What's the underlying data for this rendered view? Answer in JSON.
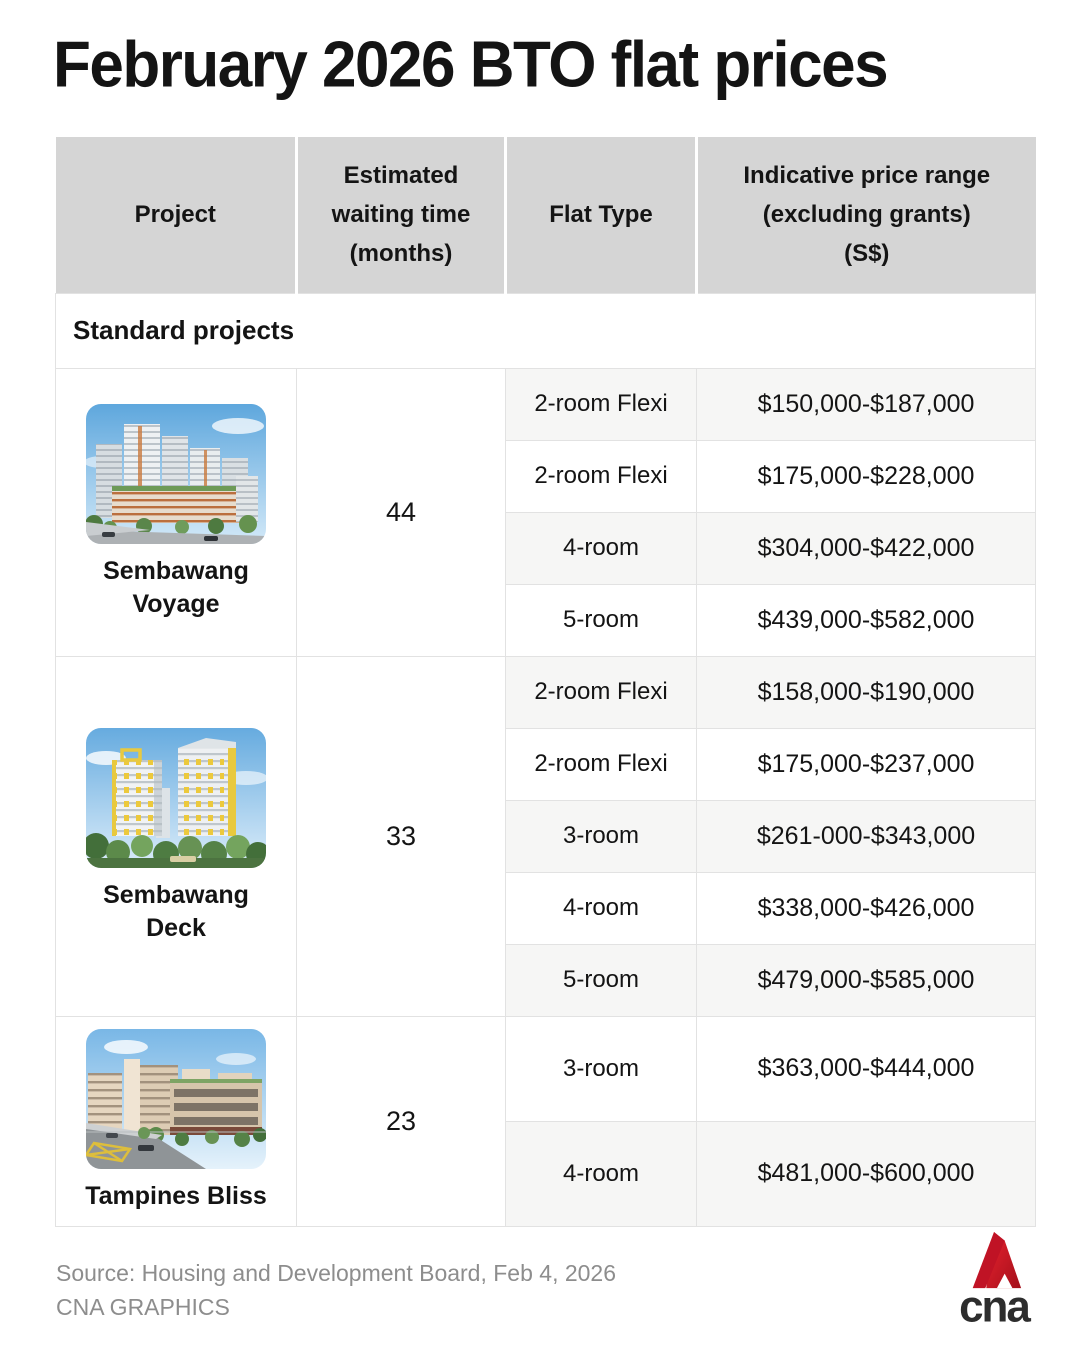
{
  "page": {
    "title": "February 2026 BTO flat prices"
  },
  "colors": {
    "header_bg": "#d5d5d5",
    "row_shade": "#f6f6f5",
    "grid_line": "#e2e2e2",
    "brand_red": "#d9232a"
  },
  "table": {
    "columns": [
      {
        "lines": [
          "Project"
        ]
      },
      {
        "lines": [
          "Estimated",
          "waiting time",
          "(months)"
        ]
      },
      {
        "lines": [
          "Flat Type"
        ]
      },
      {
        "lines": [
          "Indicative price range",
          "(excluding grants)",
          "(S$)"
        ]
      }
    ],
    "section_label": "Standard projects",
    "projects": [
      {
        "name": "Sembawang Voyage",
        "name_lines": [
          "Sembawang",
          "Voyage"
        ],
        "photo": "sembawang-voyage-photo",
        "waiting_time_months": "44",
        "flats": [
          {
            "type": "2-room Flexi",
            "price": "$150,000-$187,000"
          },
          {
            "type": "2-room Flexi",
            "price": "$175,000-$228,000"
          },
          {
            "type": "4-room",
            "price": "$304,000-$422,000"
          },
          {
            "type": "5-room",
            "price": "$439,000-$582,000"
          }
        ]
      },
      {
        "name": "Sembawang Deck",
        "name_lines": [
          "Sembawang",
          "Deck"
        ],
        "photo": "sembawang-deck-photo",
        "waiting_time_months": "33",
        "flats": [
          {
            "type": "2-room Flexi",
            "price": "$158,000-$190,000"
          },
          {
            "type": "2-room Flexi",
            "price": "$175,000-$237,000"
          },
          {
            "type": "3-room",
            "price": "$261-000-$343,000"
          },
          {
            "type": "4-room",
            "price": "$338,000-$426,000"
          },
          {
            "type": "5-room",
            "price": "$479,000-$585,000"
          }
        ]
      },
      {
        "name": "Tampines Bliss",
        "name_lines": [
          "Tampines Bliss"
        ],
        "photo": "tampines-bliss-photo",
        "waiting_time_months": "23",
        "flats": [
          {
            "type": "3-room",
            "price": "$363,000-$444,000"
          },
          {
            "type": "4-room",
            "price": "$481,000-$600,000"
          }
        ]
      }
    ]
  },
  "chart_data": {
    "type": "table",
    "title": "February 2026 BTO flat prices",
    "columns": [
      "Project",
      "Estimated waiting time (months)",
      "Flat Type",
      "Indicative price range (excluding grants) (S$)"
    ],
    "section": "Standard projects",
    "rows": [
      [
        "Sembawang Voyage",
        44,
        "2-room Flexi",
        "$150,000-$187,000"
      ],
      [
        "Sembawang Voyage",
        44,
        "2-room Flexi",
        "$175,000-$228,000"
      ],
      [
        "Sembawang Voyage",
        44,
        "4-room",
        "$304,000-$422,000"
      ],
      [
        "Sembawang Voyage",
        44,
        "5-room",
        "$439,000-$582,000"
      ],
      [
        "Sembawang Deck",
        33,
        "2-room Flexi",
        "$158,000-$190,000"
      ],
      [
        "Sembawang Deck",
        33,
        "2-room Flexi",
        "$175,000-$237,000"
      ],
      [
        "Sembawang Deck",
        33,
        "3-room",
        "$261-000-$343,000"
      ],
      [
        "Sembawang Deck",
        33,
        "4-room",
        "$338,000-$426,000"
      ],
      [
        "Sembawang Deck",
        33,
        "5-room",
        "$479,000-$585,000"
      ],
      [
        "Tampines Bliss",
        23,
        "3-room",
        "$363,000-$444,000"
      ],
      [
        "Tampines Bliss",
        23,
        "4-room",
        "$481,000-$600,000"
      ]
    ]
  },
  "footer": {
    "source": "Source: Housing and Development Board, Feb 4, 2026",
    "credit": "CNA GRAPHICS"
  },
  "logo": {
    "wordmark": "cna"
  }
}
